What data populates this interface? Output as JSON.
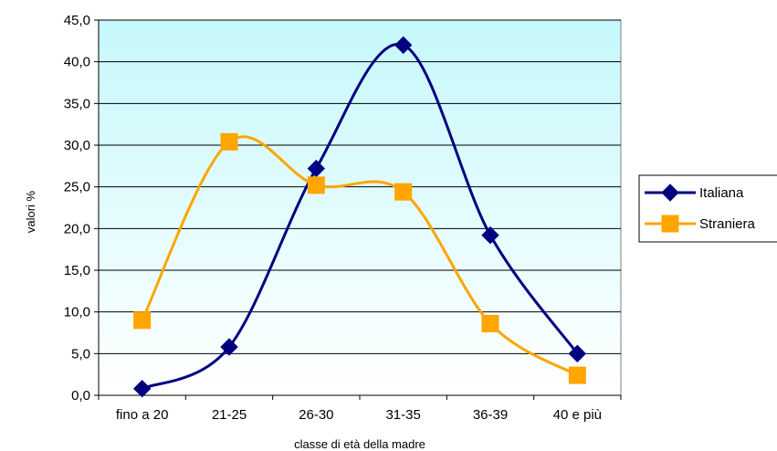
{
  "chart_data": {
    "type": "line",
    "categories": [
      "fino a 20",
      "21-25",
      "26-30",
      "31-35",
      "36-39",
      "40 e più"
    ],
    "series": [
      {
        "name": "Italiana",
        "values": [
          0.8,
          5.8,
          27.2,
          42.0,
          19.2,
          5.0
        ],
        "color": "#000080",
        "marker": "diamond"
      },
      {
        "name": "Straniera",
        "values": [
          9.0,
          30.4,
          25.2,
          24.4,
          8.6,
          2.4
        ],
        "color": "#FFA500",
        "marker": "square"
      }
    ],
    "xlabel": "classe di età della madre",
    "ylabel": "valori %",
    "ylim": [
      0,
      45
    ],
    "yticks": [
      "0,0",
      "5,0",
      "10,0",
      "15,0",
      "20,0",
      "25,0",
      "30,0",
      "35,0",
      "40,0",
      "45,0"
    ],
    "grid": true,
    "legend_position": "right",
    "plot_background": "gradient-light-cyan"
  }
}
